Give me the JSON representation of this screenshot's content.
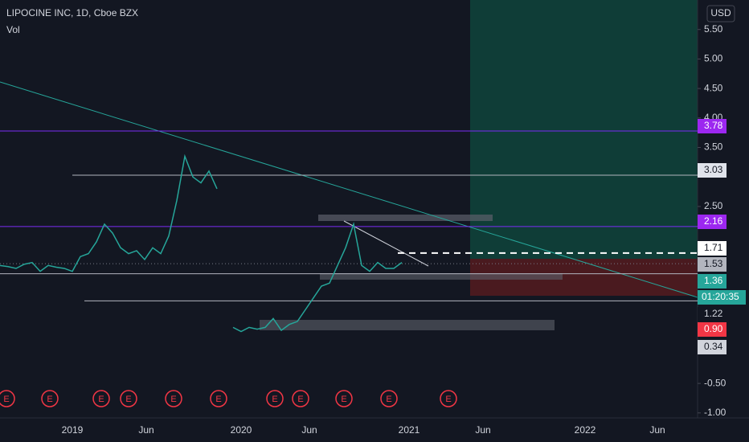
{
  "header": {
    "symbol": "LIPOCINE INC, 1D, Cboe BZX",
    "indicator": "Vol",
    "currency": "USD"
  },
  "chart_data": {
    "type": "line",
    "values": [
      1.5,
      1.48,
      1.45,
      1.52,
      1.55,
      1.4,
      1.5,
      1.47,
      1.45,
      1.4,
      1.65,
      1.7,
      1.9,
      2.2,
      2.05,
      1.8,
      1.7,
      1.75,
      1.6,
      1.8,
      1.7,
      2.0,
      2.6,
      3.35,
      3.0,
      2.9,
      3.1,
      2.8,
      null,
      0.45,
      0.38,
      0.45,
      0.42,
      0.45,
      0.6,
      0.4,
      0.5,
      0.55,
      0.75,
      0.95,
      1.15,
      1.2,
      1.5,
      1.8,
      2.2,
      1.5,
      1.4,
      1.55,
      1.45,
      1.45,
      1.55
    ],
    "ylim": [
      -1.2,
      6.0
    ],
    "yticks": [
      {
        "value": 5.5,
        "label": "5.50"
      },
      {
        "value": 5,
        "label": "5.00"
      },
      {
        "value": 4.5,
        "label": "4.50"
      },
      {
        "value": 4,
        "label": "4.00"
      },
      {
        "value": 3.5,
        "label": "3.50"
      },
      {
        "value": 2.5,
        "label": "2.50"
      },
      {
        "value": -0.5,
        "label": "-0.50"
      },
      {
        "value": -1,
        "label": "-1.00"
      }
    ],
    "x_labels": [
      "2019",
      "Jun",
      "2020",
      "Jun",
      "2021",
      "Jun",
      "2022",
      "Jun"
    ],
    "levels": [
      {
        "value": 3.78,
        "label": "3.78"
      },
      {
        "value": 3.03,
        "label": "3.03"
      },
      {
        "value": 2.16,
        "label": "2.16"
      },
      {
        "value": 1.71,
        "label": "1.71"
      },
      {
        "value": 1.53,
        "label": "1.53"
      },
      {
        "value": 1.36,
        "label": "1.36"
      },
      {
        "value": 1.22,
        "label": "1.22"
      },
      {
        "value": 0.9,
        "label": "0.90"
      },
      {
        "value": 0.34,
        "label": "0.34"
      }
    ],
    "countdown": "01:20:35",
    "earnings_markers": [
      "E",
      "E",
      "E",
      "E",
      "E",
      "E",
      "E",
      "E",
      "E",
      "E",
      "E"
    ],
    "color": "#26a69a"
  }
}
